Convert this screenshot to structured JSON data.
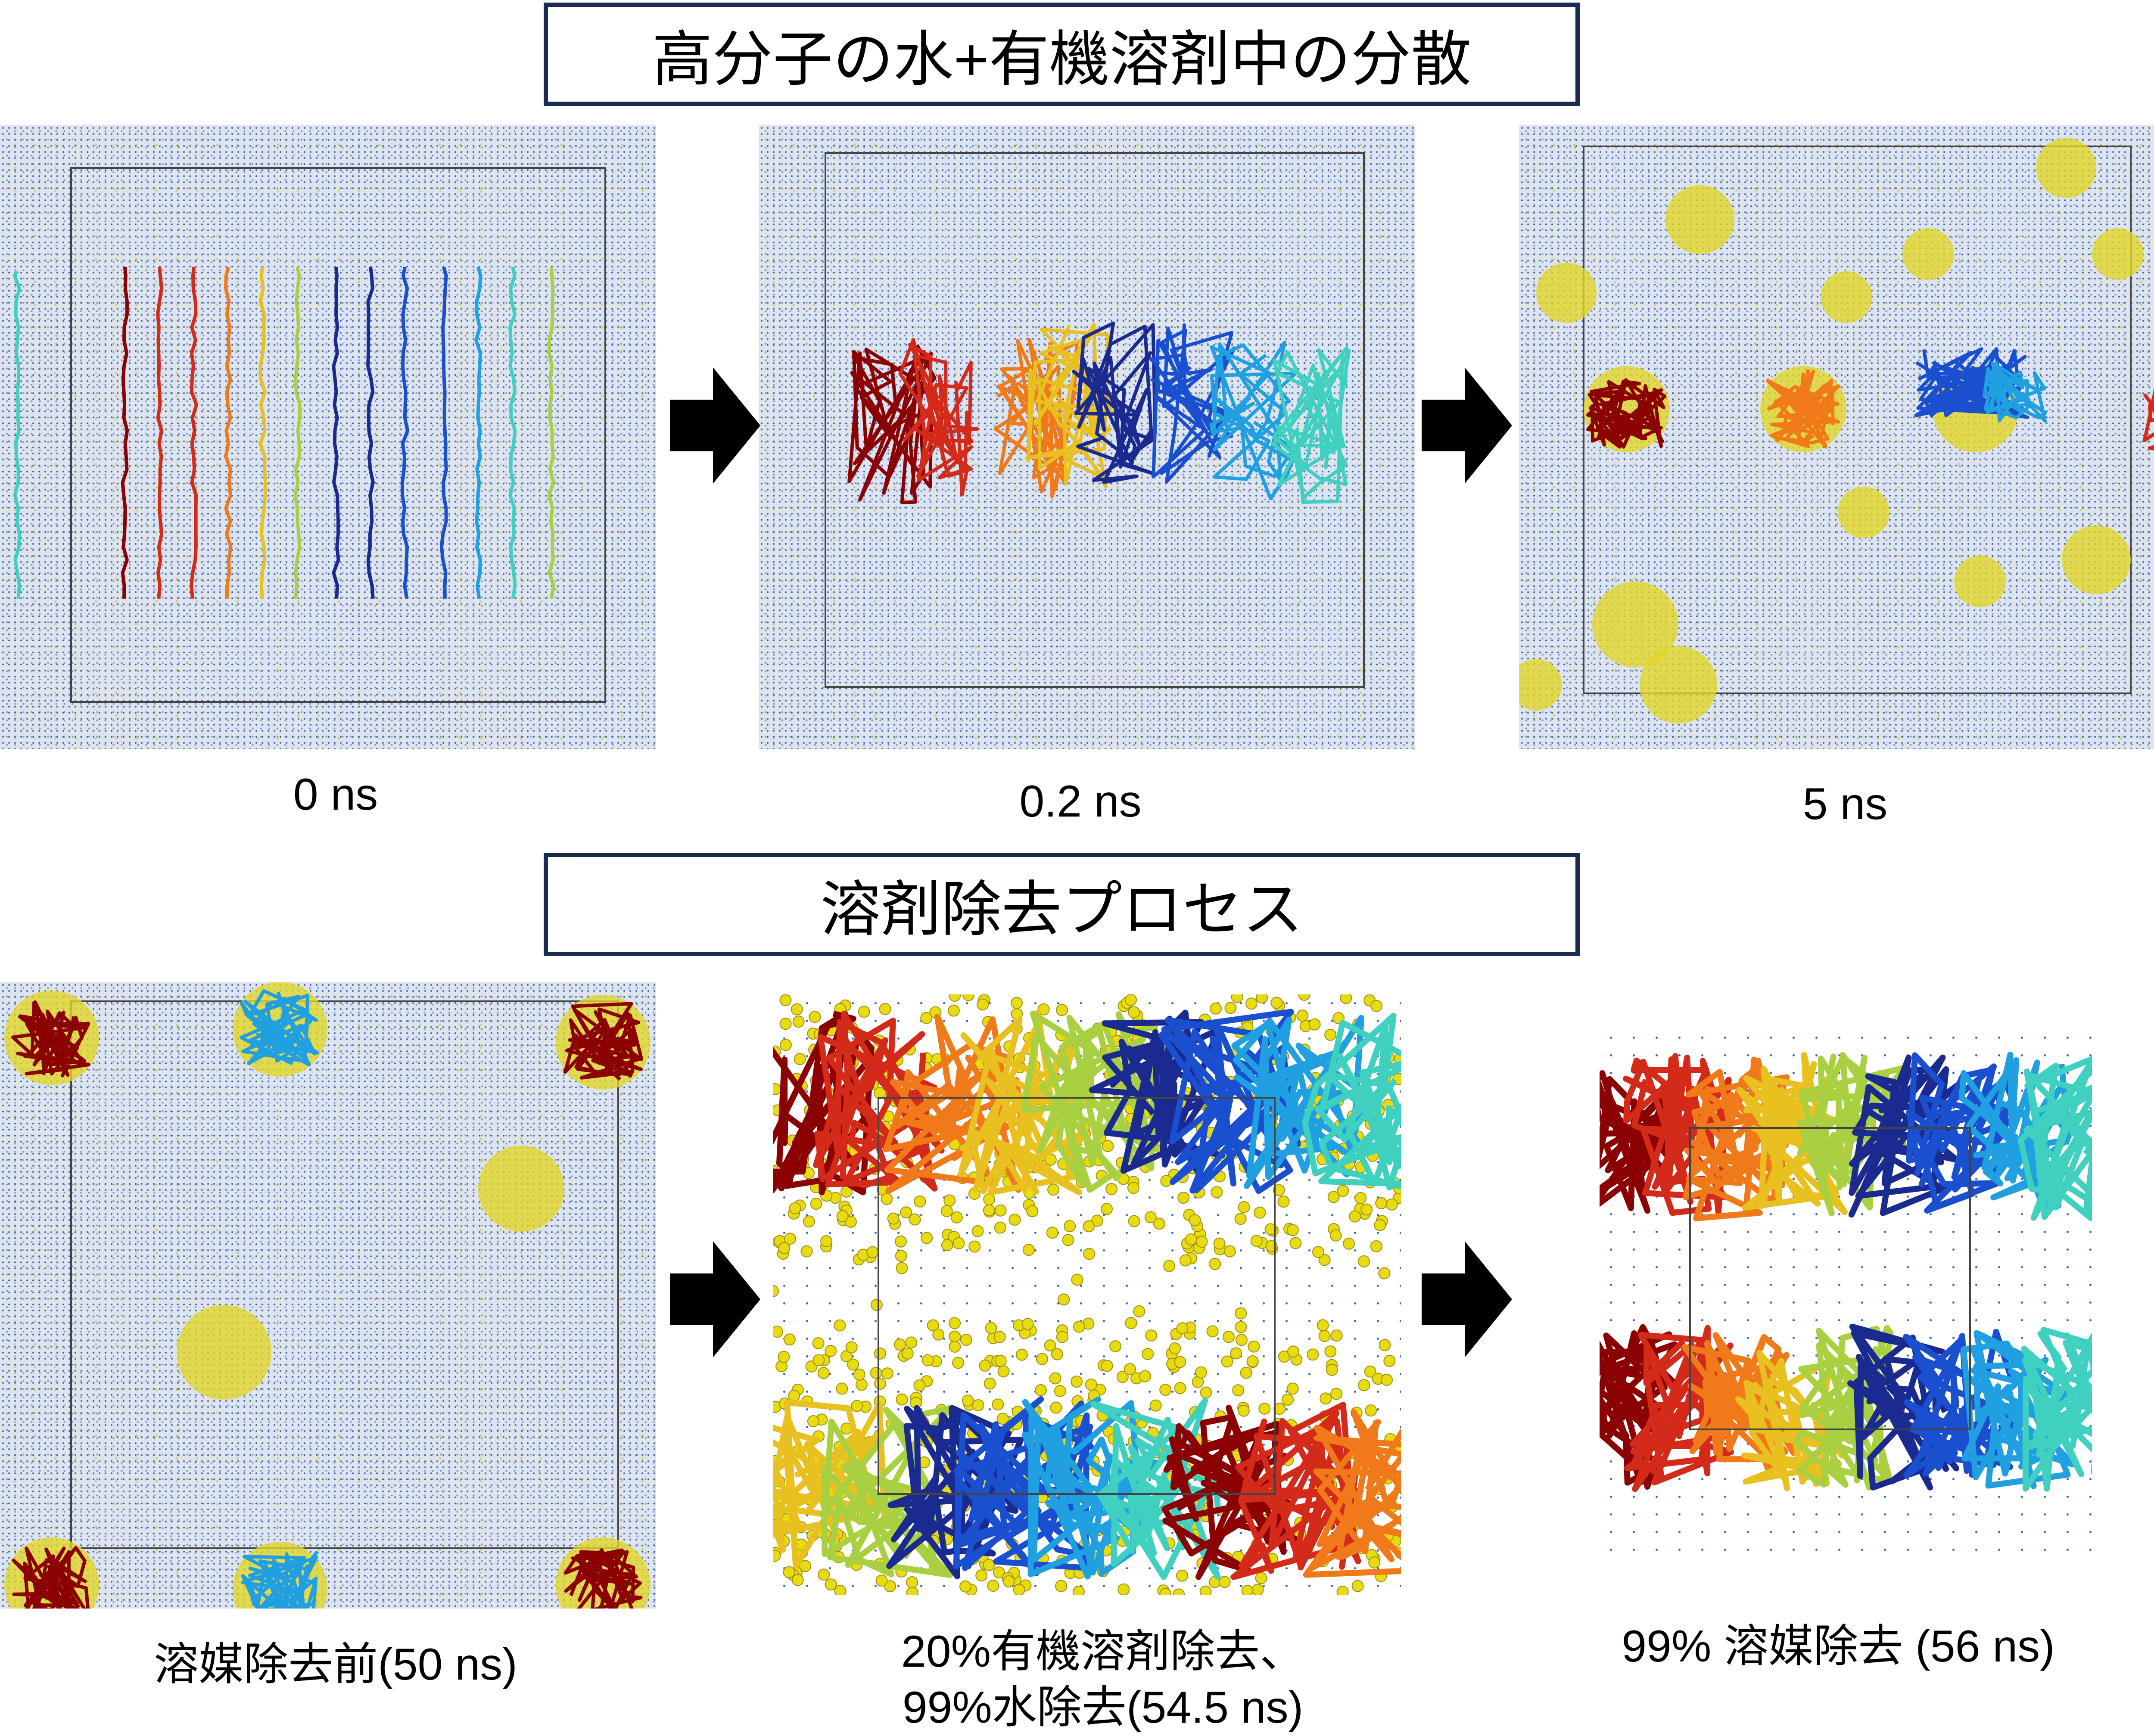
{
  "top_section": {
    "title": "高分子の水+有機溶剤中の分散",
    "panels": [
      {
        "caption": "0 ns"
      },
      {
        "caption": "0.2 ns"
      },
      {
        "caption": "5 ns"
      }
    ]
  },
  "bottom_section": {
    "title": "溶剤除去プロセス",
    "panels": [
      {
        "caption": "溶媒除去前(50 ns)"
      },
      {
        "caption_line1": "20%有機溶剤除去、",
        "caption_line2": "99%水除去(54.5 ns)"
      },
      {
        "caption": "99% 溶媒除去 (56 ns)"
      }
    ]
  },
  "colors": {
    "title_border": "#1a2c52",
    "solvent_water": "#3a5fb0",
    "solvent_organic": "#d8cf40",
    "polymer_chain_palette": [
      "#8b0000",
      "#d42a1a",
      "#f07a1a",
      "#e8c020",
      "#a8d040",
      "#1a2a90",
      "#1a50d0",
      "#20a0e0",
      "#40d0c0"
    ]
  }
}
